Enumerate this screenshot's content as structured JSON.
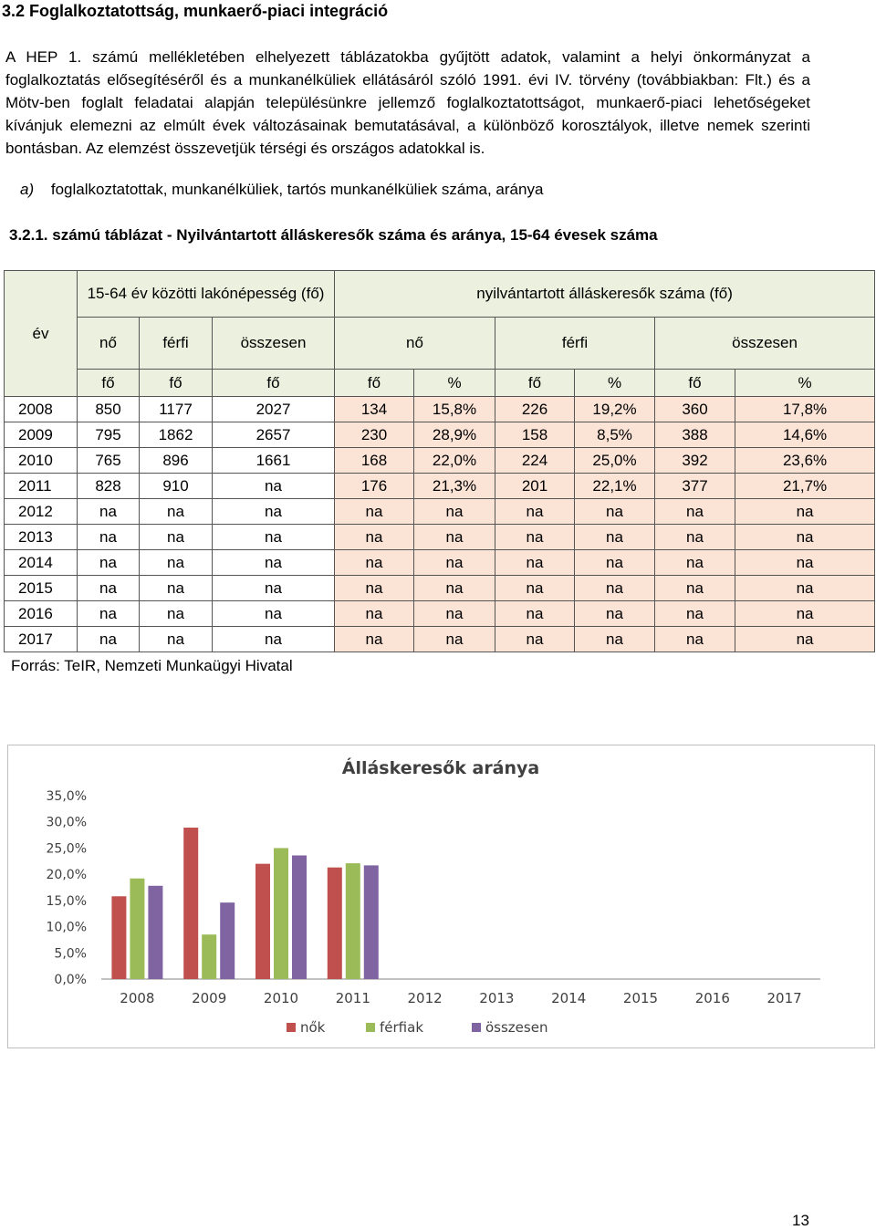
{
  "heading": "3.2 Foglalkoztatottság, munkaerő-piaci integráció",
  "intro": "A HEP 1. számú mellékletében elhelyezett táblázatokba gyűjtött adatok, valamint a helyi önkormányzat a foglalkoztatás elősegítéséről és a munkanélküliek ellátásáról szóló 1991. évi IV. törvény (továbbiakban: Flt.) és a Mötv-ben foglalt feladatai alapján településünkre jellemző foglalkoztatottságot, munkaerő-piaci lehetőségeket kívánjuk elemezni az elmúlt évek változásainak bemutatásával, a különböző korosztályok, illetve nemek szerinti bontásban. Az elemzést összevetjük térségi és országos adatokkal is.",
  "subsection": {
    "label": "a)",
    "text": "foglalkoztatottak, munkanélküliek, tartós munkanélküliek száma, aránya"
  },
  "table_caption": "3.2.1. számú táblázat - Nyilvántartott álláskeresők száma és aránya, 15-64 évesek száma",
  "table": {
    "year_header": "év",
    "group1": "15-64 év közötti lakónépesség (fő)",
    "group2": "nyilvántartott álláskeresők száma (fő)",
    "sub_headers": [
      "nő",
      "férfi",
      "összesen",
      "nő",
      "férfi",
      "összesen"
    ],
    "unit_headers": [
      "fő",
      "fő",
      "fő",
      "fő",
      "%",
      "fő",
      "%",
      "fő",
      "%"
    ],
    "rows": [
      [
        "2008",
        "850",
        "1177",
        "2027",
        "134",
        "15,8%",
        "226",
        "19,2%",
        "360",
        "17,8%"
      ],
      [
        "2009",
        "795",
        "1862",
        "2657",
        "230",
        "28,9%",
        "158",
        "8,5%",
        "388",
        "14,6%"
      ],
      [
        "2010",
        "765",
        "896",
        "1661",
        "168",
        "22,0%",
        "224",
        "25,0%",
        "392",
        "23,6%"
      ],
      [
        "2011",
        "828",
        "910",
        "na",
        "176",
        "21,3%",
        "201",
        "22,1%",
        "377",
        "21,7%"
      ],
      [
        "2012",
        "na",
        "na",
        "na",
        "na",
        "na",
        "na",
        "na",
        "na",
        "na"
      ],
      [
        "2013",
        "na",
        "na",
        "na",
        "na",
        "na",
        "na",
        "na",
        "na",
        "na"
      ],
      [
        "2014",
        "na",
        "na",
        "na",
        "na",
        "na",
        "na",
        "na",
        "na",
        "na"
      ],
      [
        "2015",
        "na",
        "na",
        "na",
        "na",
        "na",
        "na",
        "na",
        "na",
        "na"
      ],
      [
        "2016",
        "na",
        "na",
        "na",
        "na",
        "na",
        "na",
        "na",
        "na",
        "na"
      ],
      [
        "2017",
        "na",
        "na",
        "na",
        "na",
        "na",
        "na",
        "na",
        "na",
        "na"
      ]
    ]
  },
  "source": "Forrás: TeIR, Nemzeti Munkaügyi Hivatal",
  "chart_data": {
    "type": "bar",
    "title": "Álláskeresők aránya",
    "categories": [
      "2008",
      "2009",
      "2010",
      "2011",
      "2012",
      "2013",
      "2014",
      "2015",
      "2016",
      "2017"
    ],
    "series": [
      {
        "name": "nők",
        "color": "#c0504d",
        "values": [
          15.8,
          28.9,
          22.0,
          21.3,
          null,
          null,
          null,
          null,
          null,
          null
        ]
      },
      {
        "name": "férfiak",
        "color": "#9bbb59",
        "values": [
          19.2,
          8.5,
          25.0,
          22.1,
          null,
          null,
          null,
          null,
          null,
          null
        ]
      },
      {
        "name": "összesen",
        "color": "#8064a2",
        "values": [
          17.8,
          14.6,
          23.6,
          21.7,
          null,
          null,
          null,
          null,
          null,
          null
        ]
      }
    ],
    "ylim": [
      0,
      35
    ],
    "yticks": [
      "0,0%",
      "5,0%",
      "10,0%",
      "15,0%",
      "20,0%",
      "25,0%",
      "30,0%",
      "35,0%"
    ],
    "grid": false,
    "legend": "bottom"
  },
  "page_number": "13"
}
